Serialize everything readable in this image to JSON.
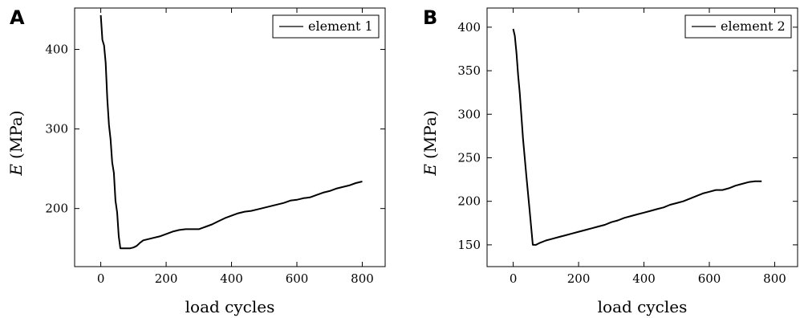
{
  "chart_data": [
    {
      "panel_label": "A",
      "type": "line",
      "xlabel": "load cycles",
      "ylabel_var": "E",
      "ylabel_unit": "(MPa)",
      "xlim": [
        -80,
        870
      ],
      "ylim": [
        127,
        452
      ],
      "xticks": [
        0,
        200,
        400,
        600,
        800
      ],
      "yticks": [
        200,
        300,
        400
      ],
      "grid": false,
      "legend_position": "top-right",
      "series": [
        {
          "name": "element 1",
          "color": "#000000",
          "x": [
            0,
            5,
            10,
            15,
            20,
            25,
            30,
            35,
            40,
            45,
            50,
            55,
            60,
            65,
            70,
            75,
            80,
            90,
            100,
            110,
            120,
            130,
            140,
            160,
            180,
            200,
            220,
            240,
            260,
            280,
            300,
            320,
            340,
            360,
            380,
            400,
            420,
            440,
            460,
            480,
            500,
            520,
            540,
            560,
            580,
            600,
            620,
            640,
            660,
            680,
            700,
            720,
            740,
            760,
            780,
            800
          ],
          "y": [
            443,
            412,
            405,
            383,
            338,
            305,
            287,
            258,
            245,
            210,
            195,
            165,
            150,
            150,
            150,
            150,
            150,
            150,
            151,
            153,
            157,
            160,
            161,
            163,
            165,
            168,
            171,
            173,
            174,
            174,
            174,
            177,
            180,
            184,
            188,
            191,
            194,
            196,
            197,
            199,
            201,
            203,
            205,
            207,
            210,
            211,
            213,
            214,
            217,
            220,
            222,
            225,
            227,
            229,
            232,
            234
          ]
        }
      ]
    },
    {
      "panel_label": "B",
      "type": "line",
      "xlabel": "load cycles",
      "ylabel_var": "E",
      "ylabel_unit": "(MPa)",
      "xlim": [
        -80,
        870
      ],
      "ylim": [
        125,
        422
      ],
      "xticks": [
        0,
        200,
        400,
        600,
        800
      ],
      "yticks": [
        150,
        200,
        250,
        300,
        350,
        400
      ],
      "grid": false,
      "legend_position": "top-right",
      "series": [
        {
          "name": "element 2",
          "color": "#000000",
          "x": [
            0,
            5,
            10,
            15,
            20,
            30,
            40,
            50,
            60,
            65,
            70,
            75,
            80,
            100,
            120,
            140,
            160,
            180,
            200,
            220,
            240,
            260,
            280,
            300,
            320,
            340,
            360,
            380,
            400,
            420,
            440,
            460,
            480,
            500,
            520,
            540,
            560,
            580,
            600,
            620,
            640,
            660,
            680,
            700,
            720,
            740,
            760
          ],
          "y": [
            398,
            390,
            370,
            345,
            325,
            272,
            230,
            190,
            150,
            150,
            150,
            151,
            152,
            155,
            157,
            159,
            161,
            163,
            165,
            167,
            169,
            171,
            173,
            176,
            178,
            181,
            183,
            185,
            187,
            189,
            191,
            193,
            196,
            198,
            200,
            203,
            206,
            209,
            211,
            213,
            213,
            215,
            218,
            220,
            222,
            223,
            223
          ]
        }
      ]
    }
  ]
}
